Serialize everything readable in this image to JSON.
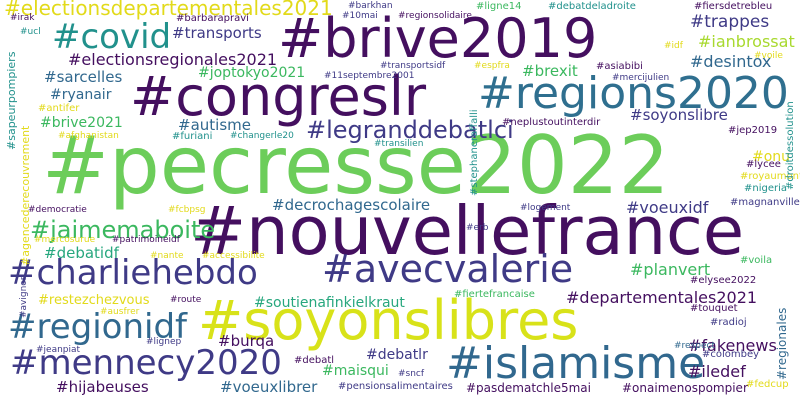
{
  "cloud": {
    "words": {
      "pecresse2022": "#pecresse2022",
      "nouvellefrance": "#nouvellefrance",
      "brive2019": "#brive2019",
      "congreslr": "#congreslr",
      "regions2020": "#regions2020",
      "soyonslibres": "#soyonslibres",
      "avecvalerie": "#avecvalerie",
      "charliehebdo": "#charliehebdo",
      "islamisme": "#islamisme",
      "mennecy2020": "#mennecy2020",
      "regionidf": "#regionidf",
      "covid": "#covid",
      "legranddebatlci": "#legranddebatlci",
      "jaimemaboite": "#jaimemaboite",
      "electionsdepartementales2021": "#electionsdepartementales2021",
      "electionsregionales2021": "#electionsregionales2021",
      "trappes": "#trappes",
      "ianbrossat": "#ianbrossat",
      "desintox": "#desintox",
      "transports": "#transports",
      "joptokyo2021": "#joptokyo2021",
      "sarcelles": "#sarcelles",
      "ryanair": "#ryanair",
      "brexit": "#brexit",
      "soyonslibre": "#soyonslibre",
      "autisme": "#autisme",
      "brive2021": "#brive2021",
      "decrochagescolaire": "#decrochagescolaire",
      "voeuxidf": "#voeuxidf",
      "debatidf": "#debatidf",
      "planvert": "#planvert",
      "soutienafinkielkraut": "#soutienafinkielkraut",
      "departementales2021": "#departementales2021",
      "burqa": "#burqa",
      "debatlr": "#debatlr",
      "maisqui": "#maisqui",
      "fakenews": "#fakenews",
      "iledef": "#iledef",
      "hijabeuses": "#hijabeuses",
      "voeuxlibrer": "#voeuxlibrer",
      "pasdematchle5mai": "#pasdematchle5mai",
      "onaimenospompier": "#onaimenospompier",
      "restezchezvous": "#restezchezvous",
      "onu": "#onu",
      "lycee": "#lycee",
      "royaumont": "#royaumont",
      "nigeria": "#nigeria",
      "magnanville": "#magnanville",
      "jep2019": "#jep2019",
      "voila": "#voila",
      "elysee2022": "#elysee2022",
      "touquet": "#touquet",
      "radioj": "#radioj",
      "colombey": "#colombey",
      "fedcup": "#fedcup",
      "irak": "#irak",
      "ucl": "#ucl",
      "barbarapravi": "#barbarapravi",
      "barkhan": "#barkhan",
      "10mai": "#10mai",
      "regionsolidaire": "#regionsolidaire",
      "ligne14": "#ligne14",
      "debatdeladroite": "#debatdeladroite",
      "fiersdetrebleu": "#fiersdetrebleu",
      "transportsidf": "#transportsidf",
      "11septembre2001": "#11septembre2001",
      "espfra": "#espfra",
      "asiabibi": "#asiabibi",
      "mercijulien": "#mercijulien",
      "idf": "#idf",
      "voile": "#voile",
      "antifer": "#antifer",
      "neplustoutinterdir": "#neplustoutinterdir",
      "afghanistan": "#afghanistan",
      "furiani": "#furiani",
      "changerle20": "#changerle20",
      "transilien": "#transilien",
      "democratie": "#democratie",
      "fcbpsg": "#fcbpsg",
      "logement": "#logement",
      "erb": "#erb",
      "mercosurue": "#mercosurue",
      "patrimoineidf": "#patrimoineidf",
      "nante": "#nante",
      "accessibilite": "#accessibilite",
      "fiertefrancaise": "#fiertefrancaise",
      "route": "#route",
      "ausfrer": "#ausfrer",
      "lignep": "#lignep",
      "jeanpiat": "#jeanpiat",
      "debatl": "#debatl",
      "sncf": "#sncf",
      "pensionsalimentaires": "#pensionsalimentaires",
      "sapeurpompiers": "#sapeurpompiers",
      "agencederecouvrement": "#agencederecouvrement",
      "avignon": "#avignon",
      "stephaneraffalli": "#stephaneraffalli",
      "droitdessolution": "#droitdessolution",
      "regionales": "#regionales",
      "respect": "#respect"
    }
  },
  "palette": {
    "purple": "#440f5f",
    "indigo": "#3f3a86",
    "blue": "#31688e",
    "teal": "#21918c",
    "green": "#3bb85f",
    "lime": "#6ccd5a",
    "yellow": "#d8e219",
    "background": "#ffffff"
  }
}
